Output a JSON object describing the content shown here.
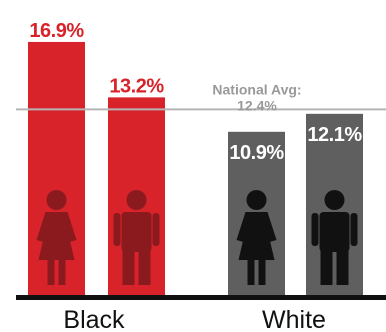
{
  "chart_data": {
    "type": "bar",
    "categories": [
      "Black",
      "White"
    ],
    "bars": [
      {
        "category": "Black",
        "icon": "female-figure-icon",
        "value": 16.9,
        "label": "16.9%",
        "color": "#d8232a",
        "figure_color": "#8b1a1e"
      },
      {
        "category": "Black",
        "icon": "male-figure-icon",
        "value": 13.2,
        "label": "13.2%",
        "color": "#d8232a",
        "figure_color": "#8b1a1e"
      },
      {
        "category": "White",
        "icon": "female-figure-icon",
        "value": 10.9,
        "label": "10.9%",
        "color": "#5f5f5f",
        "figure_color": "#111111"
      },
      {
        "category": "White",
        "icon": "male-figure-icon",
        "value": 12.1,
        "label": "12.1%",
        "color": "#5f5f5f",
        "figure_color": "#111111"
      }
    ],
    "reference_line": {
      "label": "National Avg:",
      "value_label": "12.4%",
      "value": 12.4,
      "color": "#b5b5b5"
    },
    "ylim": [
      0,
      18.5
    ],
    "label_colors": {
      "Black": "#d8232a",
      "White": "#5f5f5f"
    },
    "grid": false
  }
}
